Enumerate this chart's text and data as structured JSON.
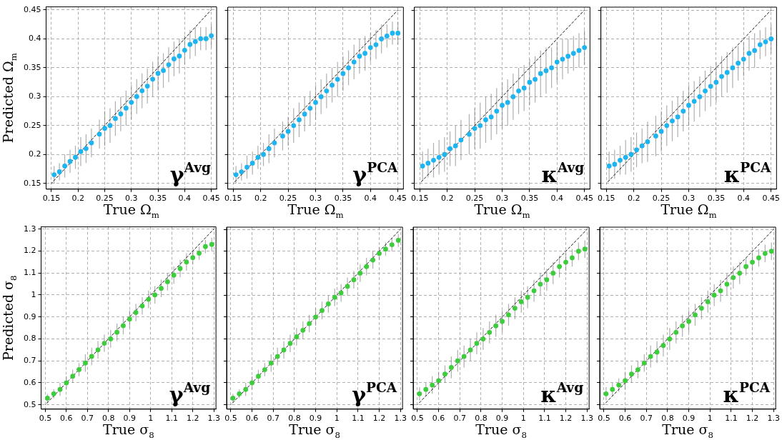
{
  "chart_data": [
    {
      "type": "scatter",
      "xlabel": "True Ω$_{m}$",
      "ylabel": "Predicted Ω$_{m}$",
      "annotations": [
        "γ$^{Avg}$"
      ],
      "xlim": [
        0.14,
        0.46
      ],
      "ylim": [
        0.14,
        0.455
      ],
      "xticks": [
        0.15,
        0.2,
        0.25,
        0.3,
        0.35,
        0.4,
        0.45
      ],
      "yticks": [
        0.15,
        0.2,
        0.25,
        0.3,
        0.35,
        0.4,
        0.45
      ],
      "grid": true,
      "legend": false,
      "series": [
        {
          "type": "scatter",
          "color": "#1eb4f0",
          "marker": "circle",
          "x": [
            0.155,
            0.165,
            0.175,
            0.185,
            0.195,
            0.205,
            0.215,
            0.225,
            0.24,
            0.25,
            0.26,
            0.27,
            0.28,
            0.29,
            0.3,
            0.31,
            0.32,
            0.33,
            0.34,
            0.35,
            0.36,
            0.37,
            0.38,
            0.39,
            0.4,
            0.41,
            0.42,
            0.43,
            0.44,
            0.45
          ],
          "values": [
            0.165,
            0.17,
            0.18,
            0.188,
            0.195,
            0.205,
            0.21,
            0.22,
            0.235,
            0.245,
            0.25,
            0.262,
            0.27,
            0.28,
            0.29,
            0.3,
            0.31,
            0.318,
            0.33,
            0.34,
            0.345,
            0.355,
            0.365,
            0.37,
            0.38,
            0.39,
            0.395,
            0.4,
            0.4,
            0.405
          ],
          "errors": [
            0.015,
            0.015,
            0.02,
            0.02,
            0.02,
            0.025,
            0.025,
            0.025,
            0.025,
            0.03,
            0.03,
            0.03,
            0.03,
            0.03,
            0.03,
            0.03,
            0.03,
            0.03,
            0.03,
            0.03,
            0.03,
            0.03,
            0.03,
            0.03,
            0.025,
            0.025,
            0.025,
            0.02,
            0.02,
            0.02
          ]
        },
        {
          "type": "line",
          "color": "#000000",
          "line_style": "dashed",
          "marker": "none",
          "x": [
            0.15,
            0.45
          ],
          "values": [
            0.15,
            0.45
          ]
        }
      ]
    },
    {
      "type": "scatter",
      "xlabel": "True Ω$_{m}$",
      "annotations": [
        "γ$^{PCA}$"
      ],
      "tick_labels": "x",
      "xlim": [
        0.14,
        0.46
      ],
      "ylim": [
        0.14,
        0.455
      ],
      "xticks": [
        0.15,
        0.2,
        0.25,
        0.3,
        0.35,
        0.4,
        0.45
      ],
      "yticks": [
        0.15,
        0.2,
        0.25,
        0.3,
        0.35,
        0.4,
        0.45
      ],
      "grid": true,
      "legend": false,
      "series": [
        {
          "type": "scatter",
          "color": "#1eb4f0",
          "marker": "circle",
          "x": [
            0.155,
            0.165,
            0.175,
            0.185,
            0.195,
            0.205,
            0.215,
            0.225,
            0.24,
            0.25,
            0.26,
            0.27,
            0.28,
            0.29,
            0.3,
            0.31,
            0.32,
            0.33,
            0.34,
            0.35,
            0.36,
            0.37,
            0.38,
            0.39,
            0.4,
            0.41,
            0.42,
            0.43,
            0.44,
            0.45
          ],
          "values": [
            0.165,
            0.17,
            0.178,
            0.185,
            0.195,
            0.2,
            0.21,
            0.22,
            0.232,
            0.24,
            0.25,
            0.26,
            0.27,
            0.28,
            0.29,
            0.3,
            0.31,
            0.32,
            0.33,
            0.34,
            0.35,
            0.36,
            0.37,
            0.375,
            0.385,
            0.39,
            0.4,
            0.405,
            0.41,
            0.41
          ],
          "errors": [
            0.015,
            0.015,
            0.02,
            0.02,
            0.02,
            0.02,
            0.025,
            0.025,
            0.025,
            0.025,
            0.03,
            0.03,
            0.03,
            0.03,
            0.03,
            0.03,
            0.03,
            0.03,
            0.03,
            0.03,
            0.03,
            0.03,
            0.03,
            0.03,
            0.025,
            0.025,
            0.025,
            0.02,
            0.02,
            0.02
          ]
        },
        {
          "type": "line",
          "color": "#000000",
          "line_style": "dashed",
          "marker": "none",
          "x": [
            0.15,
            0.45
          ],
          "values": [
            0.15,
            0.45
          ]
        }
      ]
    },
    {
      "type": "scatter",
      "xlabel": "True Ω$_{m}$",
      "annotations": [
        "κ$^{Avg}$"
      ],
      "tick_labels": "x",
      "xlim": [
        0.14,
        0.46
      ],
      "ylim": [
        0.14,
        0.455
      ],
      "xticks": [
        0.15,
        0.2,
        0.25,
        0.3,
        0.35,
        0.4,
        0.45
      ],
      "yticks": [
        0.15,
        0.2,
        0.25,
        0.3,
        0.35,
        0.4,
        0.45
      ],
      "grid": true,
      "legend": false,
      "series": [
        {
          "type": "scatter",
          "color": "#1eb4f0",
          "marker": "circle",
          "x": [
            0.155,
            0.165,
            0.175,
            0.185,
            0.195,
            0.205,
            0.215,
            0.225,
            0.24,
            0.25,
            0.26,
            0.27,
            0.28,
            0.29,
            0.3,
            0.31,
            0.32,
            0.33,
            0.34,
            0.35,
            0.36,
            0.37,
            0.38,
            0.39,
            0.4,
            0.41,
            0.42,
            0.43,
            0.44,
            0.45
          ],
          "values": [
            0.18,
            0.185,
            0.19,
            0.195,
            0.2,
            0.21,
            0.215,
            0.225,
            0.235,
            0.245,
            0.25,
            0.26,
            0.265,
            0.275,
            0.285,
            0.29,
            0.3,
            0.31,
            0.315,
            0.325,
            0.33,
            0.34,
            0.345,
            0.35,
            0.36,
            0.365,
            0.37,
            0.375,
            0.38,
            0.385
          ],
          "errors": [
            0.025,
            0.025,
            0.03,
            0.03,
            0.03,
            0.03,
            0.035,
            0.035,
            0.035,
            0.035,
            0.04,
            0.04,
            0.04,
            0.04,
            0.04,
            0.04,
            0.04,
            0.04,
            0.04,
            0.04,
            0.04,
            0.04,
            0.04,
            0.035,
            0.035,
            0.035,
            0.03,
            0.03,
            0.03,
            0.03
          ]
        },
        {
          "type": "line",
          "color": "#000000",
          "line_style": "dashed",
          "marker": "none",
          "x": [
            0.15,
            0.45
          ],
          "values": [
            0.15,
            0.45
          ]
        }
      ]
    },
    {
      "type": "scatter",
      "xlabel": "True Ω$_{m}$",
      "annotations": [
        "κ$^{PCA}$"
      ],
      "tick_labels": "x",
      "xlim": [
        0.14,
        0.46
      ],
      "ylim": [
        0.14,
        0.455
      ],
      "xticks": [
        0.15,
        0.2,
        0.25,
        0.3,
        0.35,
        0.4,
        0.45
      ],
      "yticks": [
        0.15,
        0.2,
        0.25,
        0.3,
        0.35,
        0.4,
        0.45
      ],
      "grid": true,
      "legend": false,
      "series": [
        {
          "type": "scatter",
          "color": "#1eb4f0",
          "marker": "circle",
          "x": [
            0.155,
            0.165,
            0.175,
            0.185,
            0.195,
            0.205,
            0.215,
            0.225,
            0.24,
            0.25,
            0.26,
            0.27,
            0.28,
            0.29,
            0.3,
            0.31,
            0.32,
            0.33,
            0.34,
            0.35,
            0.36,
            0.37,
            0.38,
            0.39,
            0.4,
            0.41,
            0.42,
            0.43,
            0.44,
            0.45
          ],
          "values": [
            0.18,
            0.183,
            0.19,
            0.195,
            0.2,
            0.208,
            0.215,
            0.222,
            0.232,
            0.24,
            0.25,
            0.258,
            0.265,
            0.275,
            0.285,
            0.292,
            0.3,
            0.31,
            0.318,
            0.325,
            0.335,
            0.342,
            0.35,
            0.358,
            0.365,
            0.375,
            0.38,
            0.39,
            0.395,
            0.4
          ],
          "errors": [
            0.025,
            0.025,
            0.025,
            0.03,
            0.03,
            0.03,
            0.03,
            0.035,
            0.035,
            0.035,
            0.035,
            0.035,
            0.035,
            0.035,
            0.035,
            0.035,
            0.035,
            0.035,
            0.035,
            0.035,
            0.035,
            0.035,
            0.035,
            0.03,
            0.03,
            0.03,
            0.03,
            0.025,
            0.025,
            0.025
          ]
        },
        {
          "type": "line",
          "color": "#000000",
          "line_style": "dashed",
          "marker": "none",
          "x": [
            0.15,
            0.45
          ],
          "values": [
            0.15,
            0.45
          ]
        }
      ]
    },
    {
      "type": "scatter",
      "xlabel": "True σ$_{8}$",
      "ylabel": "Predicted σ$_{8}$",
      "annotations": [
        "γ$^{Avg}$"
      ],
      "xlim": [
        0.48,
        1.31
      ],
      "ylim": [
        0.48,
        1.31
      ],
      "xticks": [
        0.5,
        0.6,
        0.7,
        0.8,
        0.9,
        1.0,
        1.1,
        1.2,
        1.3
      ],
      "yticks": [
        0.5,
        0.6,
        0.7,
        0.8,
        0.9,
        1.0,
        1.1,
        1.2,
        1.3
      ],
      "grid": true,
      "legend": false,
      "series": [
        {
          "type": "scatter",
          "color": "#3ccc3c",
          "marker": "circle",
          "x": [
            0.51,
            0.54,
            0.57,
            0.6,
            0.63,
            0.66,
            0.69,
            0.72,
            0.75,
            0.78,
            0.81,
            0.84,
            0.87,
            0.9,
            0.93,
            0.96,
            0.99,
            1.02,
            1.05,
            1.08,
            1.11,
            1.14,
            1.17,
            1.2,
            1.23,
            1.26,
            1.29
          ],
          "values": [
            0.53,
            0.55,
            0.57,
            0.6,
            0.63,
            0.66,
            0.69,
            0.72,
            0.75,
            0.78,
            0.8,
            0.83,
            0.86,
            0.89,
            0.92,
            0.95,
            0.98,
            1.0,
            1.03,
            1.06,
            1.09,
            1.12,
            1.15,
            1.17,
            1.19,
            1.22,
            1.23
          ],
          "errors": [
            0.02,
            0.02,
            0.03,
            0.03,
            0.03,
            0.03,
            0.04,
            0.04,
            0.04,
            0.04,
            0.04,
            0.04,
            0.04,
            0.04,
            0.04,
            0.04,
            0.04,
            0.04,
            0.04,
            0.04,
            0.04,
            0.04,
            0.04,
            0.03,
            0.03,
            0.03,
            0.03
          ]
        },
        {
          "type": "line",
          "color": "#000000",
          "line_style": "dashed",
          "marker": "none",
          "x": [
            0.5,
            1.3
          ],
          "values": [
            0.5,
            1.3
          ]
        }
      ]
    },
    {
      "type": "scatter",
      "xlabel": "True σ$_{8}$",
      "annotations": [
        "γ$^{PCA}$"
      ],
      "tick_labels": "x",
      "xlim": [
        0.48,
        1.31
      ],
      "ylim": [
        0.48,
        1.31
      ],
      "xticks": [
        0.5,
        0.6,
        0.7,
        0.8,
        0.9,
        1.0,
        1.1,
        1.2,
        1.3
      ],
      "yticks": [
        0.5,
        0.6,
        0.7,
        0.8,
        0.9,
        1.0,
        1.1,
        1.2,
        1.3
      ],
      "grid": true,
      "legend": false,
      "series": [
        {
          "type": "scatter",
          "color": "#3ccc3c",
          "marker": "circle",
          "x": [
            0.51,
            0.54,
            0.57,
            0.6,
            0.63,
            0.66,
            0.69,
            0.72,
            0.75,
            0.78,
            0.81,
            0.84,
            0.87,
            0.9,
            0.93,
            0.96,
            0.99,
            1.02,
            1.05,
            1.08,
            1.11,
            1.14,
            1.17,
            1.2,
            1.23,
            1.26,
            1.29
          ],
          "values": [
            0.53,
            0.55,
            0.57,
            0.6,
            0.63,
            0.66,
            0.69,
            0.72,
            0.75,
            0.78,
            0.81,
            0.84,
            0.87,
            0.9,
            0.93,
            0.96,
            0.99,
            1.01,
            1.04,
            1.07,
            1.1,
            1.13,
            1.16,
            1.19,
            1.21,
            1.23,
            1.25
          ],
          "errors": [
            0.02,
            0.02,
            0.03,
            0.03,
            0.03,
            0.03,
            0.04,
            0.04,
            0.04,
            0.04,
            0.04,
            0.04,
            0.04,
            0.04,
            0.04,
            0.04,
            0.04,
            0.04,
            0.04,
            0.04,
            0.04,
            0.04,
            0.04,
            0.03,
            0.03,
            0.03,
            0.03
          ]
        },
        {
          "type": "line",
          "color": "#000000",
          "line_style": "dashed",
          "marker": "none",
          "x": [
            0.5,
            1.3
          ],
          "values": [
            0.5,
            1.3
          ]
        }
      ]
    },
    {
      "type": "scatter",
      "xlabel": "True σ$_{8}$",
      "annotations": [
        "κ$^{Avg}$"
      ],
      "tick_labels": "x",
      "xlim": [
        0.48,
        1.31
      ],
      "ylim": [
        0.48,
        1.31
      ],
      "xticks": [
        0.5,
        0.6,
        0.7,
        0.8,
        0.9,
        1.0,
        1.1,
        1.2,
        1.3
      ],
      "yticks": [
        0.5,
        0.6,
        0.7,
        0.8,
        0.9,
        1.0,
        1.1,
        1.2,
        1.3
      ],
      "grid": true,
      "legend": false,
      "series": [
        {
          "type": "scatter",
          "color": "#3ccc3c",
          "marker": "circle",
          "x": [
            0.51,
            0.54,
            0.57,
            0.6,
            0.63,
            0.66,
            0.69,
            0.72,
            0.75,
            0.78,
            0.81,
            0.84,
            0.87,
            0.9,
            0.93,
            0.96,
            0.99,
            1.02,
            1.05,
            1.08,
            1.11,
            1.14,
            1.17,
            1.2,
            1.23,
            1.26,
            1.29
          ],
          "values": [
            0.55,
            0.57,
            0.59,
            0.61,
            0.64,
            0.67,
            0.7,
            0.72,
            0.75,
            0.78,
            0.8,
            0.83,
            0.86,
            0.88,
            0.91,
            0.94,
            0.97,
            0.99,
            1.02,
            1.05,
            1.07,
            1.1,
            1.13,
            1.15,
            1.17,
            1.2,
            1.21
          ],
          "errors": [
            0.03,
            0.03,
            0.04,
            0.04,
            0.04,
            0.05,
            0.05,
            0.05,
            0.05,
            0.05,
            0.05,
            0.05,
            0.05,
            0.05,
            0.05,
            0.05,
            0.05,
            0.05,
            0.05,
            0.05,
            0.05,
            0.05,
            0.05,
            0.04,
            0.04,
            0.04,
            0.04
          ]
        },
        {
          "type": "line",
          "color": "#000000",
          "line_style": "dashed",
          "marker": "none",
          "x": [
            0.5,
            1.3
          ],
          "values": [
            0.5,
            1.3
          ]
        }
      ]
    },
    {
      "type": "scatter",
      "xlabel": "True σ$_{8}$",
      "annotations": [
        "κ$^{PCA}$"
      ],
      "tick_labels": "x",
      "xlim": [
        0.48,
        1.31
      ],
      "ylim": [
        0.48,
        1.31
      ],
      "xticks": [
        0.5,
        0.6,
        0.7,
        0.8,
        0.9,
        1.0,
        1.1,
        1.2,
        1.3
      ],
      "yticks": [
        0.5,
        0.6,
        0.7,
        0.8,
        0.9,
        1.0,
        1.1,
        1.2,
        1.3
      ],
      "grid": true,
      "legend": false,
      "series": [
        {
          "type": "scatter",
          "color": "#3ccc3c",
          "marker": "circle",
          "x": [
            0.51,
            0.54,
            0.57,
            0.6,
            0.63,
            0.66,
            0.69,
            0.72,
            0.75,
            0.78,
            0.81,
            0.84,
            0.87,
            0.9,
            0.93,
            0.96,
            0.99,
            1.02,
            1.05,
            1.08,
            1.11,
            1.14,
            1.17,
            1.2,
            1.23,
            1.26,
            1.29
          ],
          "values": [
            0.55,
            0.57,
            0.59,
            0.61,
            0.64,
            0.66,
            0.69,
            0.72,
            0.74,
            0.77,
            0.8,
            0.83,
            0.86,
            0.88,
            0.91,
            0.94,
            0.97,
            1.0,
            1.02,
            1.05,
            1.08,
            1.1,
            1.13,
            1.15,
            1.17,
            1.19,
            1.2
          ],
          "errors": [
            0.03,
            0.03,
            0.03,
            0.04,
            0.04,
            0.04,
            0.04,
            0.05,
            0.05,
            0.05,
            0.05,
            0.05,
            0.05,
            0.05,
            0.05,
            0.05,
            0.05,
            0.05,
            0.05,
            0.05,
            0.05,
            0.05,
            0.04,
            0.04,
            0.04,
            0.04,
            0.04
          ]
        },
        {
          "type": "line",
          "color": "#000000",
          "line_style": "dashed",
          "marker": "none",
          "x": [
            0.5,
            1.3
          ],
          "values": [
            0.5,
            1.3
          ]
        }
      ]
    }
  ]
}
